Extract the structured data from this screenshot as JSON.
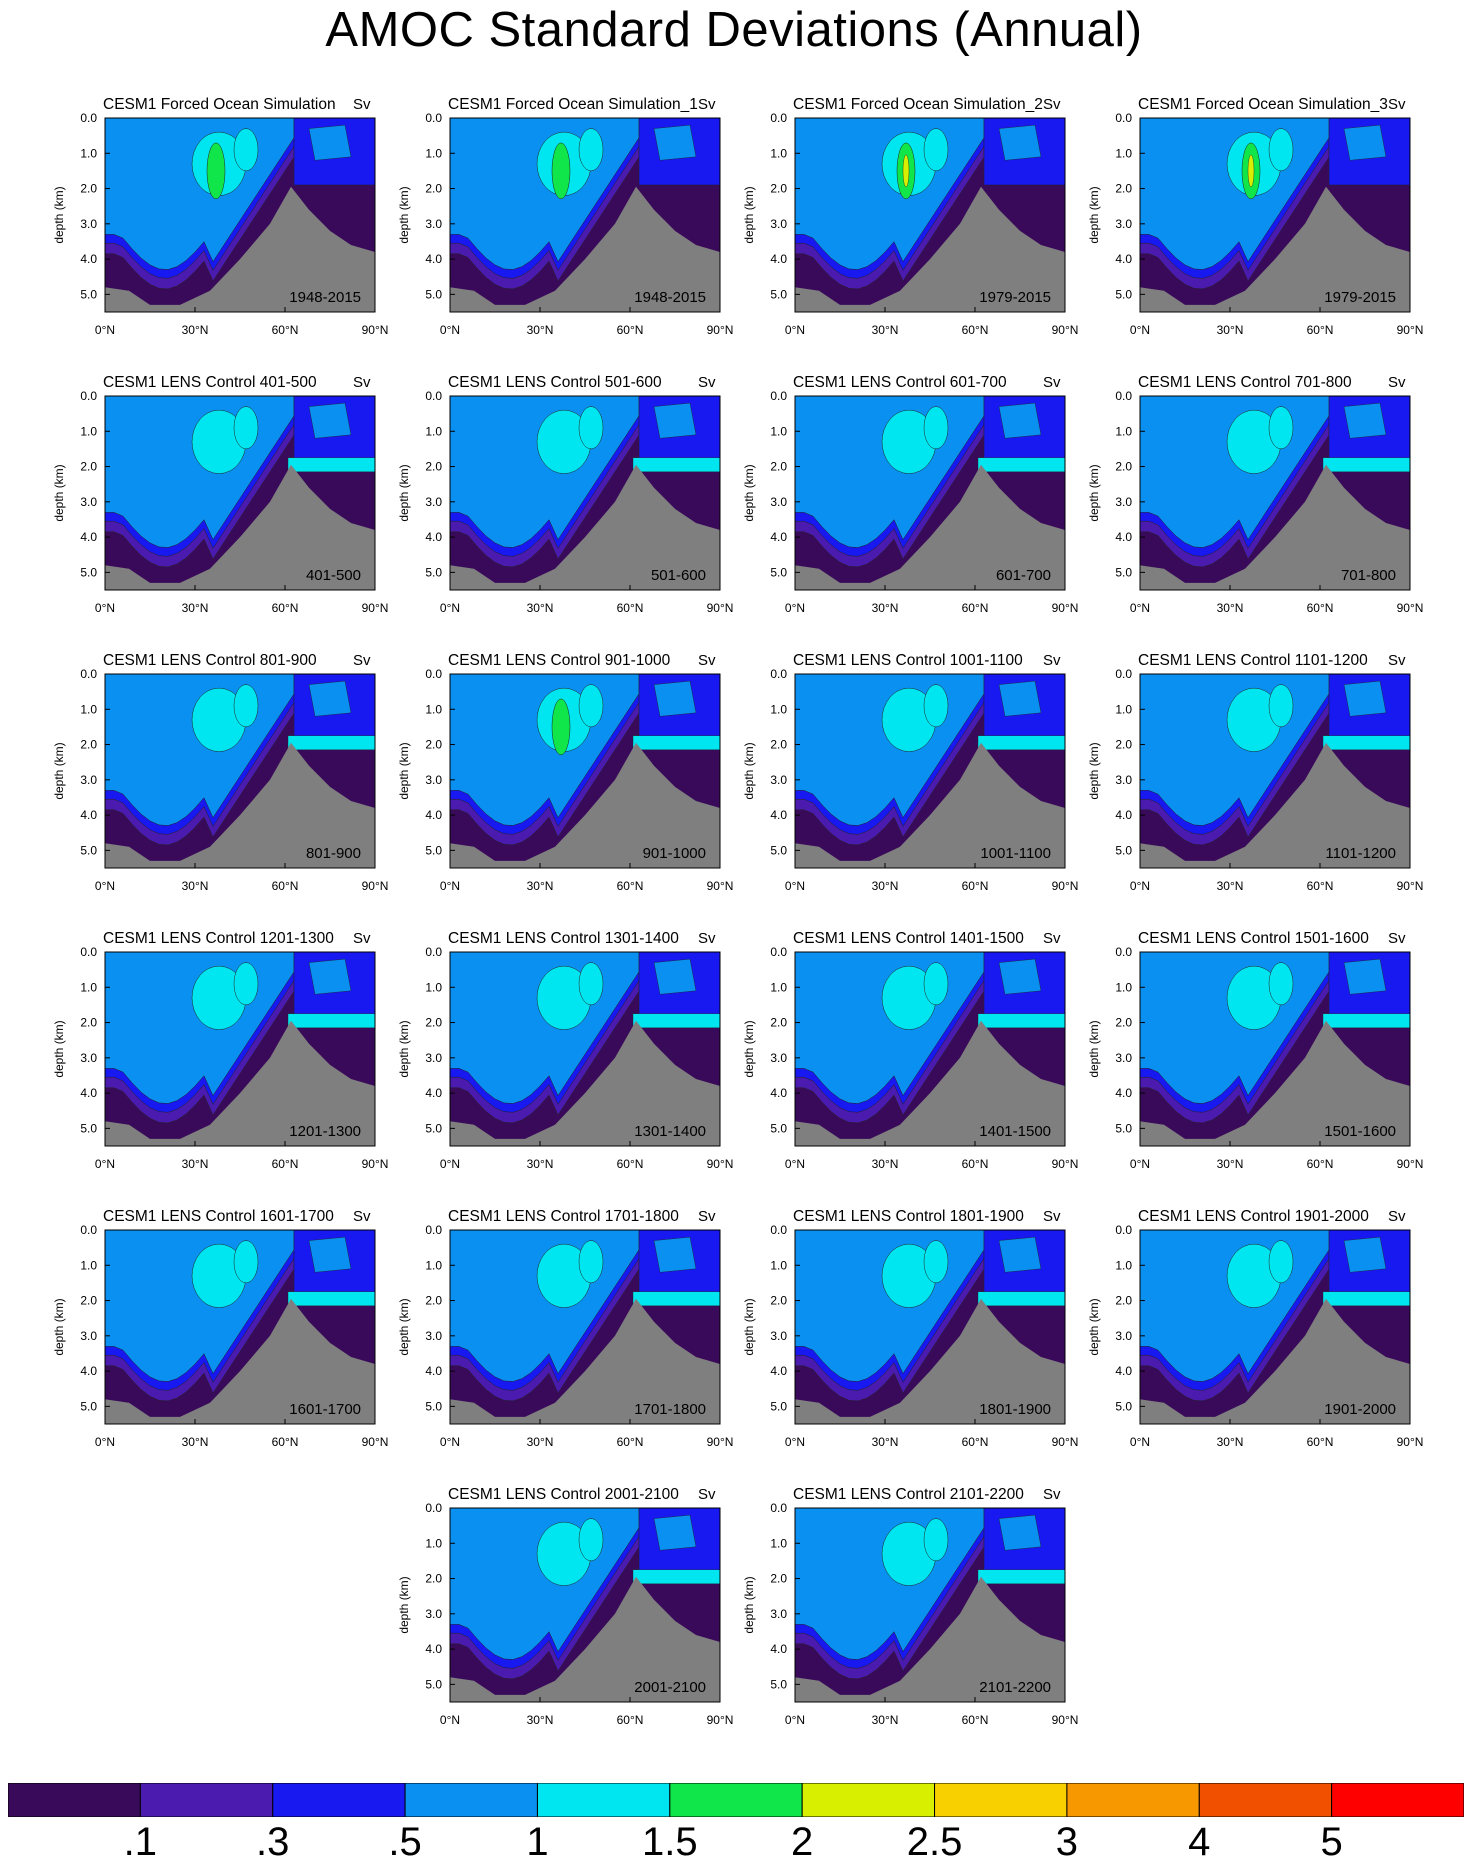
{
  "title": "AMOC Standard Deviations (Annual)",
  "chart_data": {
    "type": "contour",
    "units_label": "Sv",
    "ylabel": "depth (km)",
    "y_ticks": [
      "0.0",
      "1.0",
      "2.0",
      "3.0",
      "4.0",
      "5.0"
    ],
    "ylim": [
      0.0,
      5.5
    ],
    "x_ticks": [
      "0°N",
      "30°N",
      "60°N",
      "90°N"
    ],
    "xlim": [
      0,
      90
    ],
    "colorbar": {
      "levels": [
        ".1",
        ".3",
        ".5",
        "1",
        "1.5",
        "2",
        "2.5",
        "3",
        "4",
        "5"
      ],
      "colors": [
        "#3a0a5a",
        "#4b1aaf",
        "#1818f0",
        "#0a90f0",
        "#00e6f0",
        "#10e64a",
        "#d8f000",
        "#f8d000",
        "#f89800",
        "#f05000",
        "#ff0000"
      ]
    },
    "panels": [
      {
        "title": "CESM1 Forced Ocean Simulation",
        "units": "Sv",
        "period": "1948-2015",
        "peak_level": 2
      },
      {
        "title": "CESM1 Forced Ocean Simulation_1",
        "units": "Sv",
        "period": "1948-2015",
        "peak_level": 2
      },
      {
        "title": "CESM1 Forced Ocean Simulation_2",
        "units": "Sv",
        "period": "1979-2015",
        "peak_level": 2.5
      },
      {
        "title": "CESM1 Forced Ocean Simulation_3",
        "units": "Sv",
        "period": "1979-2015",
        "peak_level": 2.5
      },
      {
        "title": "CESM1 LENS Control 401-500",
        "units": "Sv",
        "period": "401-500",
        "peak_level": 1.5
      },
      {
        "title": "CESM1 LENS Control 501-600",
        "units": "Sv",
        "period": "501-600",
        "peak_level": 1.5
      },
      {
        "title": "CESM1 LENS Control 601-700",
        "units": "Sv",
        "period": "601-700",
        "peak_level": 1.5
      },
      {
        "title": "CESM1 LENS Control 701-800",
        "units": "Sv",
        "period": "701-800",
        "peak_level": 1.5
      },
      {
        "title": "CESM1 LENS Control 801-900",
        "units": "Sv",
        "period": "801-900",
        "peak_level": 1.5
      },
      {
        "title": "CESM1 LENS Control 901-1000",
        "units": "Sv",
        "period": "901-1000",
        "peak_level": 2
      },
      {
        "title": "CESM1 LENS Control 1001-1100",
        "units": "Sv",
        "period": "1001-1100",
        "peak_level": 1.5
      },
      {
        "title": "CESM1 LENS Control 1101-1200",
        "units": "Sv",
        "period": "1101-1200",
        "peak_level": 1.5
      },
      {
        "title": "CESM1 LENS Control 1201-1300",
        "units": "Sv",
        "period": "1201-1300",
        "peak_level": 1.5
      },
      {
        "title": "CESM1 LENS Control 1301-1400",
        "units": "Sv",
        "period": "1301-1400",
        "peak_level": 1.5
      },
      {
        "title": "CESM1 LENS Control 1401-1500",
        "units": "Sv",
        "period": "1401-1500",
        "peak_level": 1.5
      },
      {
        "title": "CESM1 LENS Control 1501-1600",
        "units": "Sv",
        "period": "1501-1600",
        "peak_level": 1.5
      },
      {
        "title": "CESM1 LENS Control 1601-1700",
        "units": "Sv",
        "period": "1601-1700",
        "peak_level": 1.5
      },
      {
        "title": "CESM1 LENS Control 1701-1800",
        "units": "Sv",
        "period": "1701-1800",
        "peak_level": 1.5
      },
      {
        "title": "CESM1 LENS Control 1801-1900",
        "units": "Sv",
        "period": "1801-1900",
        "peak_level": 1.5
      },
      {
        "title": "CESM1 LENS Control 1901-2000",
        "units": "Sv",
        "period": "1901-2000",
        "peak_level": 1.5
      },
      {
        "title": "CESM1 LENS Control 2001-2100",
        "units": "Sv",
        "period": "2001-2100",
        "peak_level": 1.5
      },
      {
        "title": "CESM1 LENS Control 2101-2200",
        "units": "Sv",
        "period": "2101-2200",
        "peak_level": 1.5
      }
    ]
  }
}
